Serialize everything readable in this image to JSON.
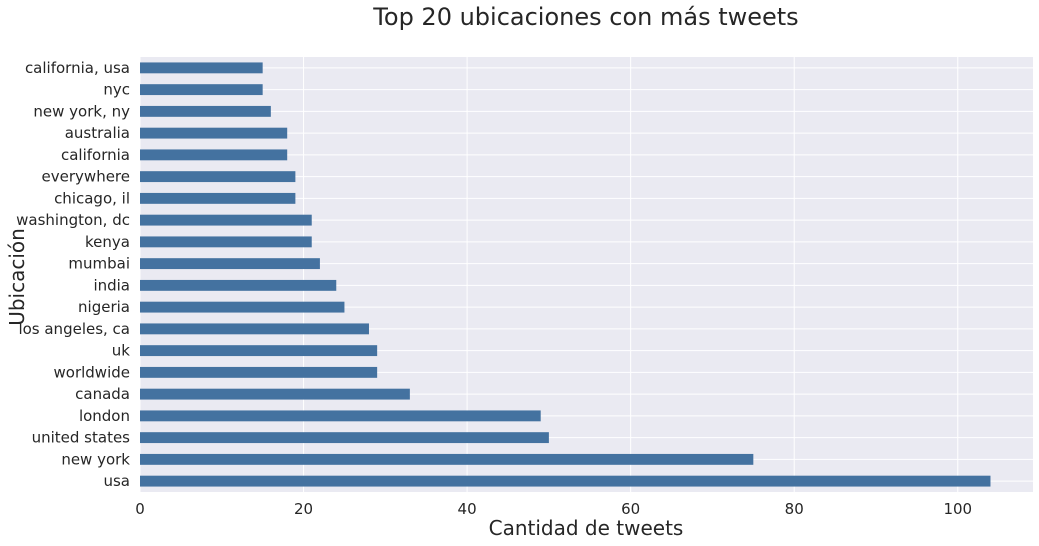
{
  "chart_data": {
    "type": "bar",
    "orientation": "horizontal",
    "title": "Top 20 ubicaciones con más tweets",
    "xlabel": "Cantidad de tweets",
    "ylabel": "Ubicación",
    "categories": [
      "usa",
      "new york",
      "united states",
      "london",
      "canada",
      "worldwide",
      "uk",
      "los angeles, ca",
      "nigeria",
      "india",
      "mumbai",
      "kenya",
      "washington, dc",
      "chicago, il",
      "everywhere",
      "california",
      "australia",
      "new york, ny",
      "nyc",
      "california, usa"
    ],
    "values": [
      104,
      75,
      50,
      49,
      33,
      29,
      29,
      28,
      25,
      24,
      22,
      21,
      21,
      19,
      19,
      18,
      18,
      16,
      15,
      15
    ],
    "xticks": [
      0,
      20,
      40,
      60,
      80,
      100
    ],
    "xlim": [
      0,
      109.2
    ],
    "grid": true,
    "colors": {
      "bar": "#4472a0",
      "background": "#eaeaf2",
      "grid": "#ffffff"
    }
  }
}
